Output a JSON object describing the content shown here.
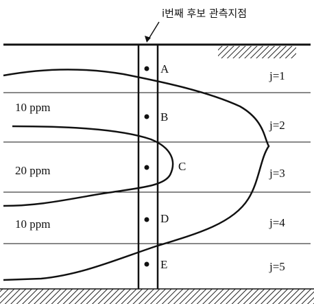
{
  "header": {
    "label": "i번째 후보 관측지점"
  },
  "points": [
    "A",
    "B",
    "C",
    "D",
    "E"
  ],
  "layers": [
    "j=1",
    "j=2",
    "j=3",
    "j=4",
    "j=5"
  ],
  "concentrations": [
    "10 ppm",
    "20 ppm",
    "10 ppm"
  ]
}
